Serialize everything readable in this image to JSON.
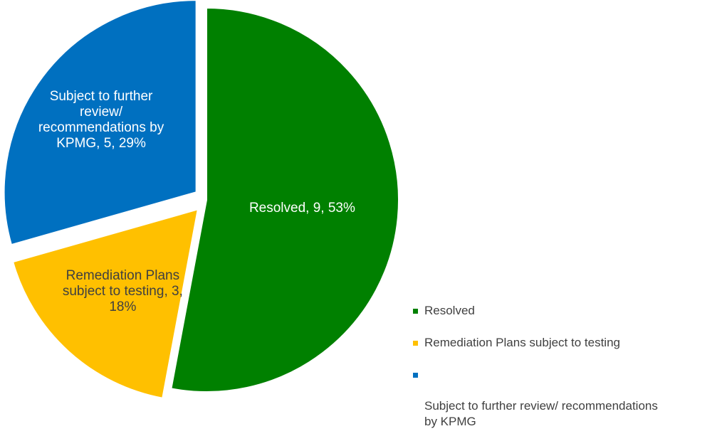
{
  "chart_data": {
    "type": "pie",
    "title": "",
    "slices": [
      {
        "name": "Resolved",
        "value": 9,
        "percent": "53%",
        "label": "Resolved, 9, 53%",
        "color": "#008000",
        "label_color": "#ffffff",
        "exploded": false
      },
      {
        "name": "Remediation Plans subject to testing",
        "value": 3,
        "percent": "18%",
        "label": "Remediation Plans\nsubject to testing, 3,\n18%",
        "color": "#FFC000",
        "label_color": "#404040",
        "exploded": true
      },
      {
        "name": "Subject to further review/ recommendations by KPMG",
        "value": 5,
        "percent": "29%",
        "label": "Subject to further\nreview/\nrecommendations by\nKPMG, 5, 29%",
        "color": "#0070C0",
        "label_color": "#ffffff",
        "exploded": true
      }
    ],
    "legend": {
      "position": "bottom-right",
      "entries": [
        "Resolved",
        "Remediation Plans subject to testing",
        "Subject to further review/ recommendations\nby KPMG"
      ]
    }
  }
}
